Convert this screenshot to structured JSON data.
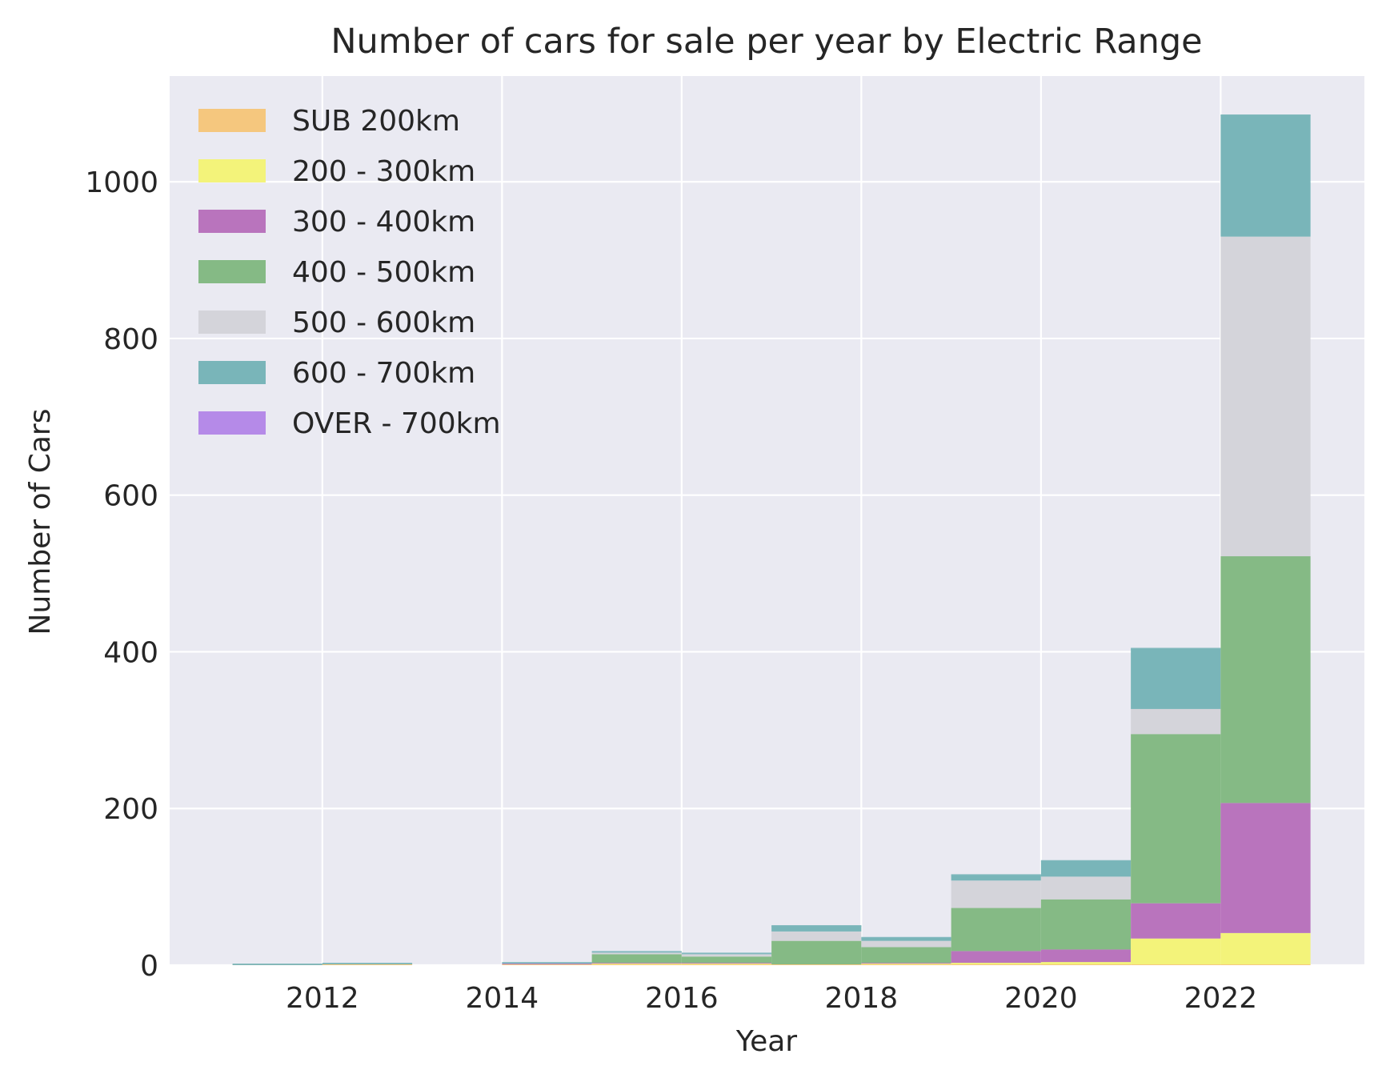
{
  "chart_data": {
    "type": "bar",
    "stacked": true,
    "title": "Number of cars for sale per year by Electric Range",
    "xlabel": "Year",
    "ylabel": "Number of Cars",
    "xlim": [
      2010.3,
      2023.6
    ],
    "ylim": [
      0,
      1135
    ],
    "xticks": [
      2012,
      2014,
      2016,
      2018,
      2020,
      2022
    ],
    "yticks": [
      0,
      200,
      400,
      600,
      800,
      1000
    ],
    "grid": true,
    "legend_position": "top-left",
    "bins": [
      [
        2011,
        2012
      ],
      [
        2012,
        2013
      ],
      [
        2013,
        2014
      ],
      [
        2014,
        2015
      ],
      [
        2015,
        2016
      ],
      [
        2016,
        2017
      ],
      [
        2017,
        2018
      ],
      [
        2018,
        2019
      ],
      [
        2019,
        2020
      ],
      [
        2020,
        2021
      ],
      [
        2021,
        2022
      ],
      [
        2022,
        2023
      ]
    ],
    "series": [
      {
        "name": "SUB 200km",
        "color": "#f5c77e",
        "values": [
          1,
          2,
          0,
          1,
          1,
          1,
          1,
          1,
          1,
          1,
          1,
          1
        ]
      },
      {
        "name": "200 - 300km",
        "color": "#f3f37a",
        "values": [
          0,
          0,
          0,
          0,
          1,
          1,
          0,
          1,
          2,
          3,
          33,
          40
        ]
      },
      {
        "name": "300 - 400km",
        "color": "#b974bd",
        "values": [
          0,
          0,
          0,
          1,
          1,
          1,
          0,
          1,
          15,
          16,
          45,
          166
        ]
      },
      {
        "name": "400 - 500km",
        "color": "#85ba85",
        "values": [
          0,
          0,
          0,
          0,
          11,
          8,
          30,
          20,
          55,
          64,
          216,
          315
        ]
      },
      {
        "name": "500 - 600km",
        "color": "#d4d4da",
        "values": [
          0,
          0,
          0,
          1,
          3,
          4,
          12,
          8,
          35,
          29,
          32,
          408
        ]
      },
      {
        "name": "600 - 700km",
        "color": "#79b5b9",
        "values": [
          0,
          0,
          0,
          0,
          0,
          0,
          7,
          4,
          7,
          20,
          77,
          155
        ]
      },
      {
        "name": "OVER - 700km",
        "color": "#b58ae8",
        "values": [
          0,
          0,
          0,
          0,
          0,
          0,
          0,
          0,
          0,
          0,
          0,
          0
        ]
      }
    ]
  }
}
